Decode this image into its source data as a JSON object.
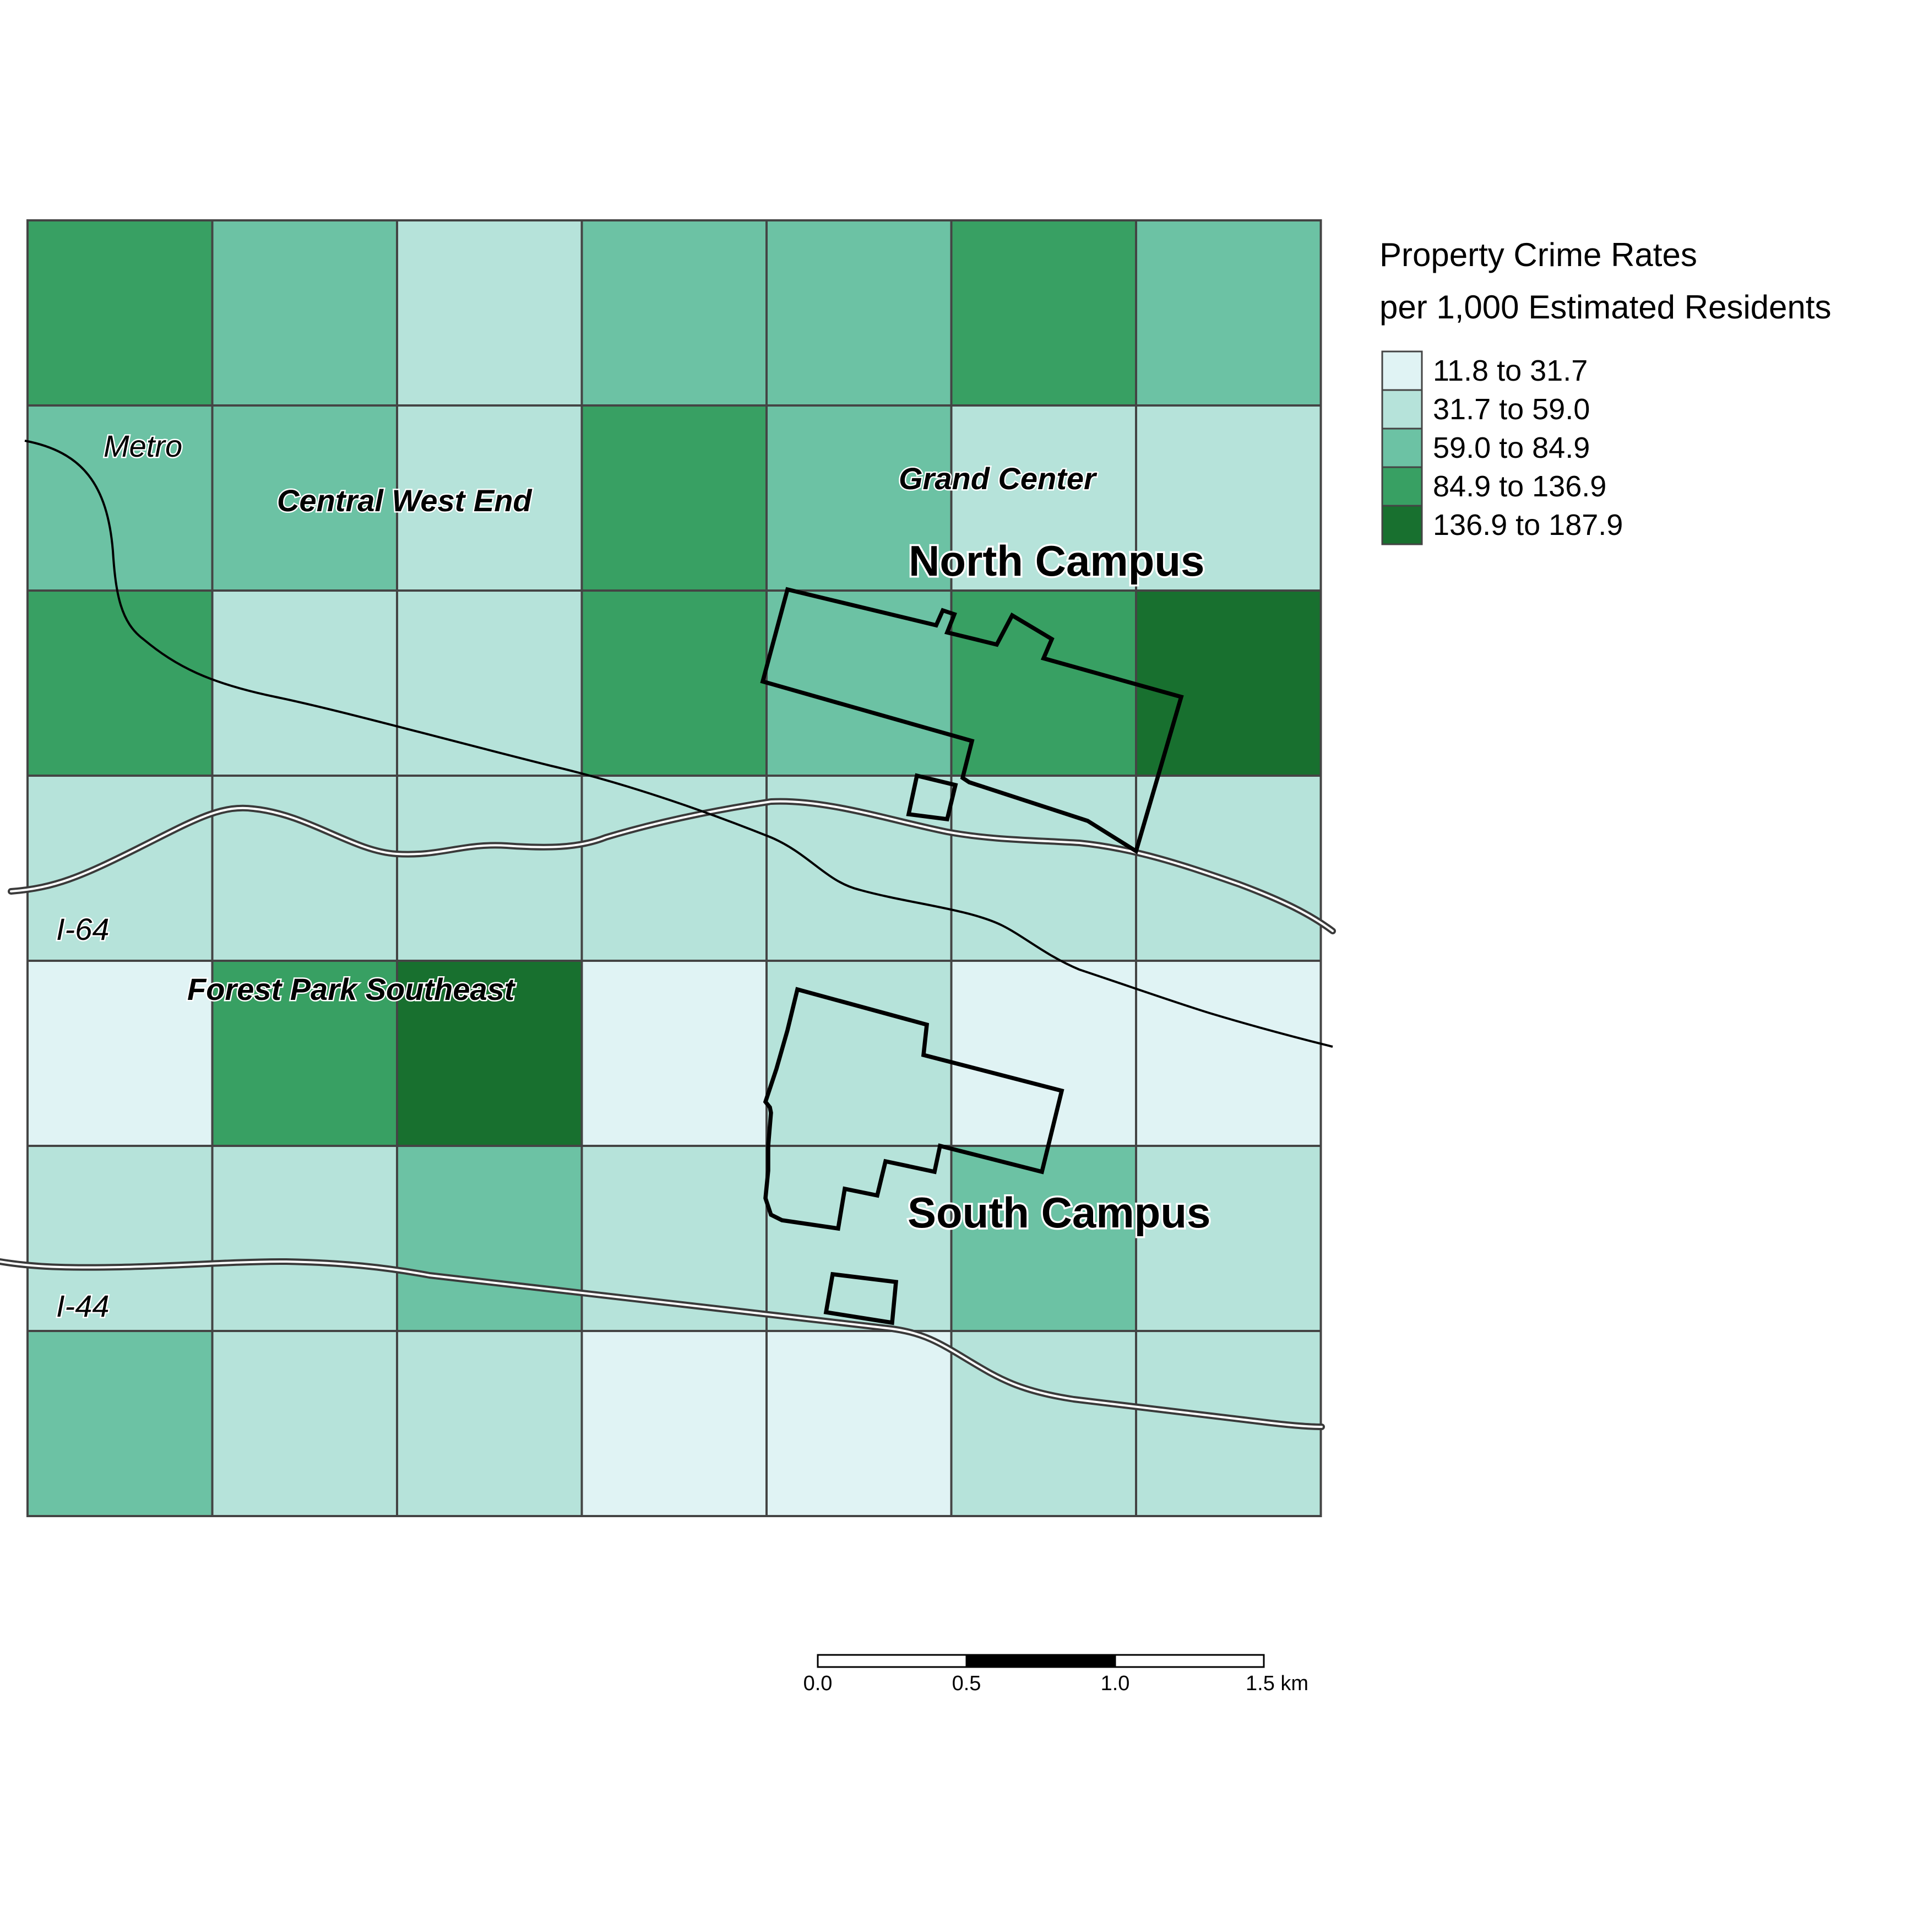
{
  "legend": {
    "title_line1": "Property Crime Rates",
    "title_line2": "per 1,000 Estimated Residents",
    "classes": [
      {
        "label": "11.8 to 31.7",
        "color": "#e0f3f4"
      },
      {
        "label": "31.7 to 59.0",
        "color": "#b6e3da"
      },
      {
        "label": "59.0 to 84.9",
        "color": "#6cc2a4"
      },
      {
        "label": "84.9 to 136.9",
        "color": "#38a063"
      },
      {
        "label": "136.9 to 187.9",
        "color": "#18702f"
      }
    ]
  },
  "grid": {
    "rows": [
      [
        3,
        2,
        1,
        2,
        2,
        3,
        2
      ],
      [
        2,
        2,
        1,
        3,
        2,
        1,
        1
      ],
      [
        3,
        1,
        1,
        3,
        2,
        3,
        4
      ],
      [
        1,
        1,
        1,
        1,
        1,
        1,
        1
      ],
      [
        0,
        3,
        4,
        0,
        1,
        0,
        0
      ],
      [
        1,
        1,
        2,
        1,
        1,
        2,
        1
      ],
      [
        2,
        1,
        1,
        0,
        0,
        1,
        1
      ]
    ]
  },
  "labels": {
    "metro": "Metro",
    "central_west_end": "Central West End",
    "grand_center": "Grand Center",
    "north_campus": "North Campus",
    "i64": "I-64",
    "forest_park_southeast": "Forest Park Southeast",
    "south_campus": "South Campus",
    "i44": "I-44"
  },
  "scale_bar": {
    "ticks": [
      "0.0",
      "0.5",
      "1.0",
      "1.5 km"
    ]
  }
}
